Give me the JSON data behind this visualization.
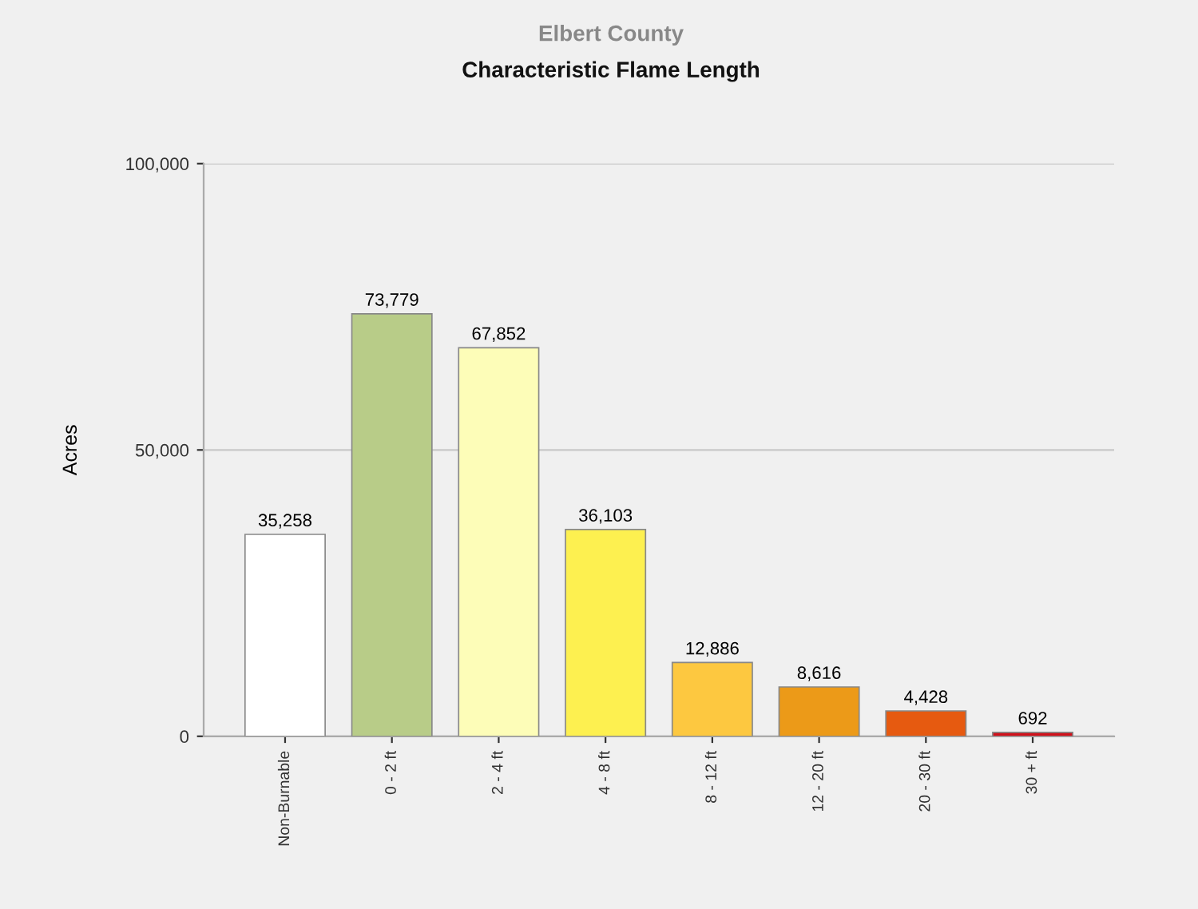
{
  "chart_data": {
    "type": "bar",
    "title": "Characteristic Flame Length",
    "subtitle": "Elbert County",
    "ylabel": "Acres",
    "categories": [
      "Non-Burnable",
      "0 - 2 ft",
      "2 - 4 ft",
      "4 - 8 ft",
      "8 - 12 ft",
      "12 - 20 ft",
      "20 - 30 ft",
      "30 + ft"
    ],
    "values": [
      35258,
      73779,
      67852,
      36103,
      12886,
      8616,
      4428,
      692
    ],
    "value_labels": [
      "35,258",
      "73,779",
      "67,852",
      "36,103",
      "12,886",
      "8,616",
      "4,428",
      "692"
    ],
    "colors": [
      "#ffffff",
      "#b8cc88",
      "#fdfdb8",
      "#fdf050",
      "#fdc840",
      "#ec9a18",
      "#e65a10",
      "#d0101a"
    ],
    "ylim": [
      0,
      100000
    ],
    "yticks": [
      {
        "value": 0,
        "label": "0"
      },
      {
        "value": 50000,
        "label": "50,000"
      },
      {
        "value": 100000,
        "label": "100,000"
      }
    ],
    "grid": "y"
  }
}
